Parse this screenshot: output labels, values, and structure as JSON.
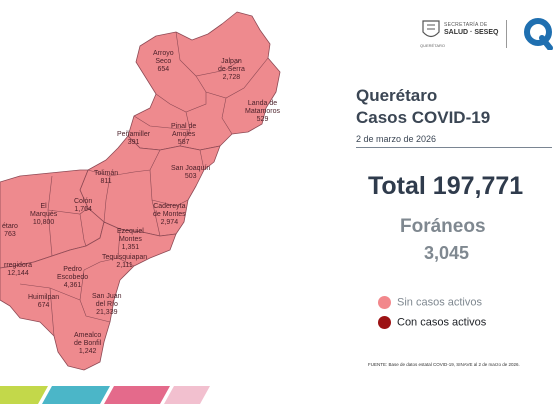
{
  "header": {
    "secretaria_line1": "SECRETARÍA DE",
    "secretaria_line2": "SALUD · SESEQ",
    "state_label": "QUERÉTARO"
  },
  "title": {
    "line1": "Querétaro",
    "line2": "Casos COVID-19",
    "date": "2 de marzo de 2026"
  },
  "totals": {
    "total": "Total 197,771",
    "foraneos_label": "Foráneos",
    "foraneos_value": "3,045"
  },
  "legend": {
    "inactive_label": "Sin casos activos",
    "active_label": "Con casos activos",
    "inactive_color": "#f2888c",
    "active_color": "#9c1214"
  },
  "map": {
    "fill_color": "#ee8a8e",
    "stroke_color": "#8e4a55",
    "municipalities": [
      {
        "id": "arroyo-seco",
        "name": "Arroyo\nSeco",
        "value": "654"
      },
      {
        "id": "jalpan",
        "name": "Jalpan\nde Serra",
        "value": "2,728"
      },
      {
        "id": "landa",
        "name": "Landa de\nMatamoros",
        "value": "529"
      },
      {
        "id": "pinal",
        "name": "Pinal de\nAmoles",
        "value": "587"
      },
      {
        "id": "penamiller",
        "name": "Peñamiller",
        "value": "391"
      },
      {
        "id": "san-joaquin",
        "name": "San Joaquín",
        "value": "503"
      },
      {
        "id": "toliman",
        "name": "Tolimán",
        "value": "811"
      },
      {
        "id": "cadereyta",
        "name": "Cadereyta\nde Montes",
        "value": "2,974"
      },
      {
        "id": "el-marques",
        "name": "El\nMarqués",
        "value": "10,800"
      },
      {
        "id": "colon",
        "name": "Colón",
        "value": "1,764"
      },
      {
        "id": "ezequiel",
        "name": "Ezequiel\nMontes",
        "value": "1,351"
      },
      {
        "id": "queretaro",
        "name": "étaro",
        "value": "763"
      },
      {
        "id": "tequisquiapan",
        "name": "Tequisquiapan",
        "value": "2,111"
      },
      {
        "id": "corregidora",
        "name": "rregidora",
        "value": "12,144"
      },
      {
        "id": "pedro-escobedo",
        "name": "Pedro\nEscobedo",
        "value": "4,361"
      },
      {
        "id": "san-juan",
        "name": "San Juan\ndel Río",
        "value": "21,339"
      },
      {
        "id": "huimilpan",
        "name": "Huimilpan",
        "value": "674"
      },
      {
        "id": "amealco",
        "name": "Amealco\nde Bonfil",
        "value": "1,242"
      }
    ]
  },
  "source": "FUENTE:  Base de datos estatal  COVID-19,  SINAVE  al 2 de marzo de 2026.",
  "stripe_colors": [
    "#c3d84a",
    "#4bb6c8",
    "#e46a8b",
    "#f2c0cf"
  ]
}
